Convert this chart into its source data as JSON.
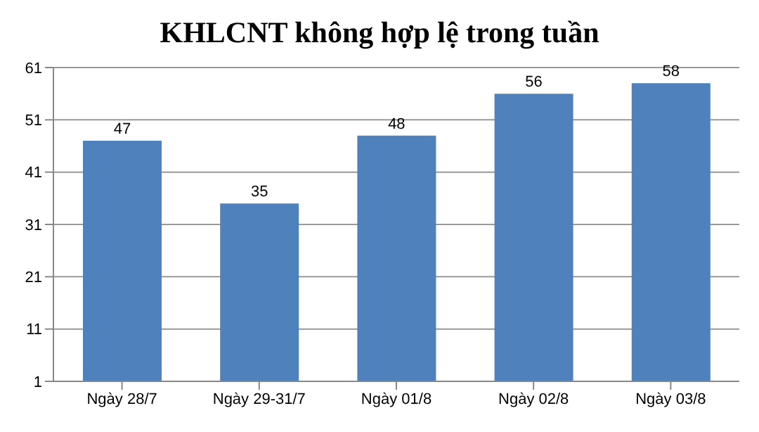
{
  "chart_data": {
    "type": "bar",
    "title": "KHLCNT không hợp lệ trong tuần",
    "categories": [
      "Ngày 28/7",
      "Ngày 29-31/7",
      "Ngày 01/8",
      "Ngày 02/8",
      "Ngày 03/8"
    ],
    "values": [
      47,
      35,
      48,
      56,
      58
    ],
    "color": "#4f81bd",
    "ylim": [
      1,
      61
    ],
    "yticks": [
      1,
      11,
      21,
      31,
      41,
      51,
      61
    ],
    "grid": "y",
    "data_labels": true
  }
}
